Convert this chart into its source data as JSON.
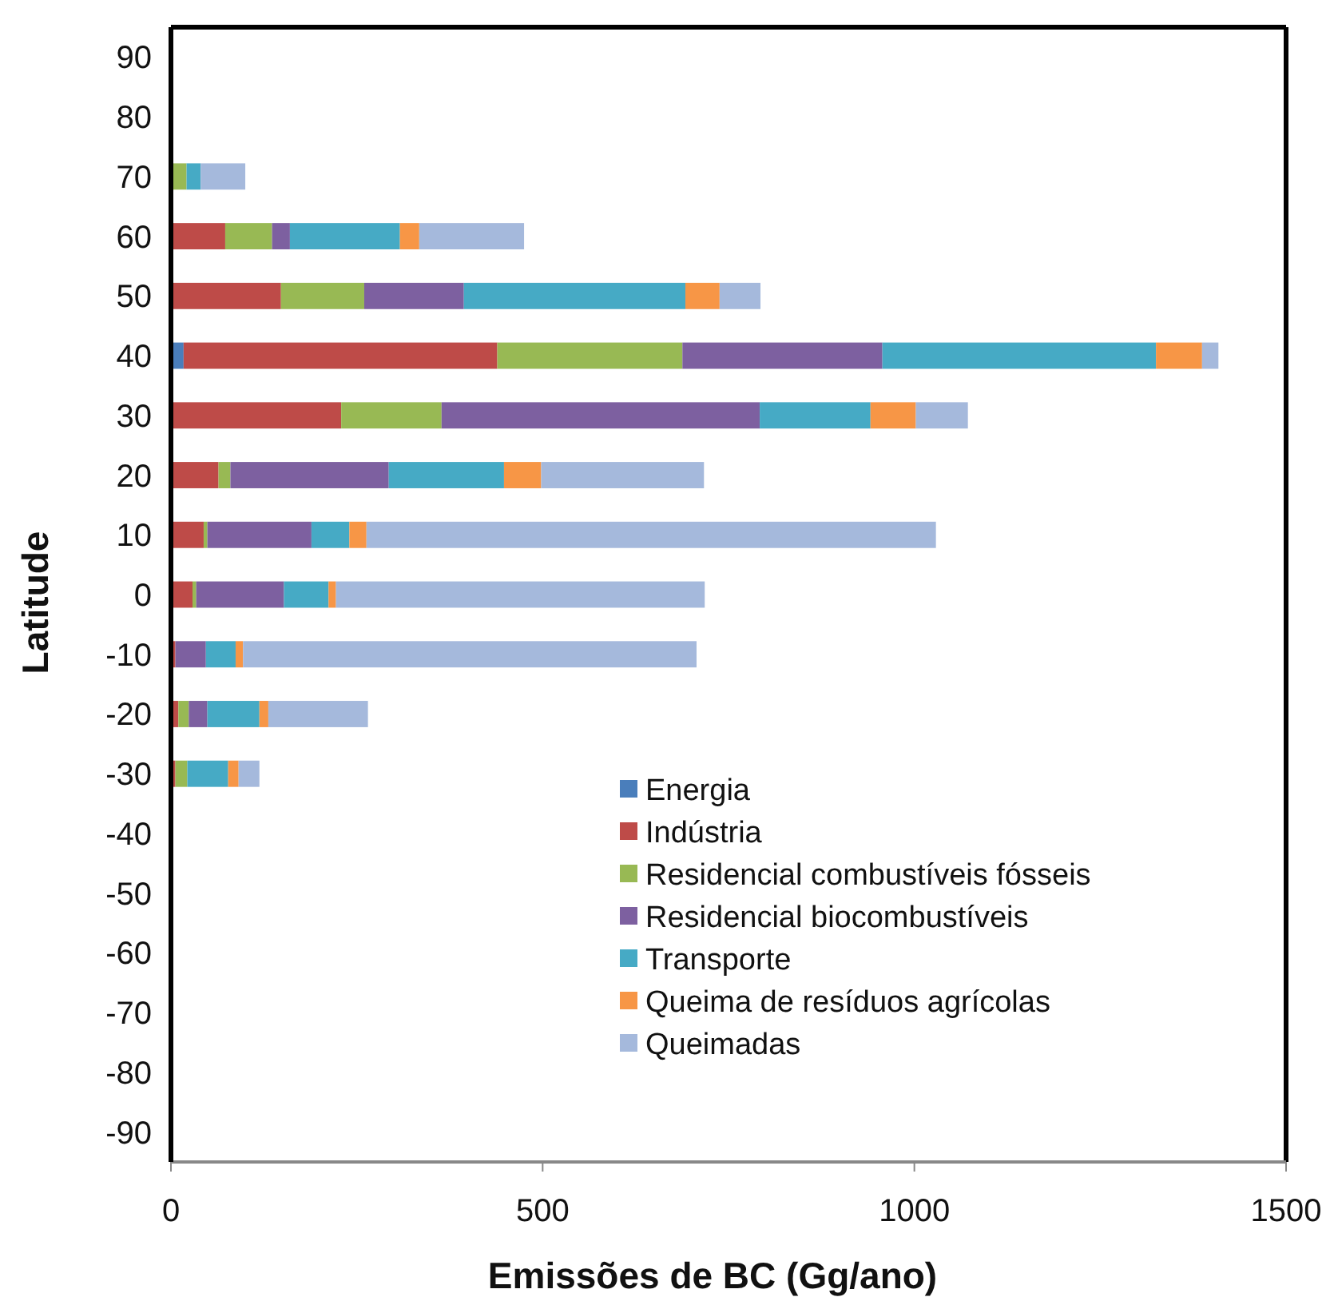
{
  "chart_data": {
    "type": "bar",
    "orientation": "horizontal",
    "stacked": true,
    "xlabel": "Emissões de BC (Gg/ano)",
    "ylabel": "Latitude",
    "categories": [
      "90",
      "80",
      "70",
      "60",
      "50",
      "40",
      "30",
      "20",
      "10",
      "0",
      "-10",
      "-20",
      "-30",
      "-40",
      "-50",
      "-60",
      "-70",
      "-80",
      "-90"
    ],
    "xlim": [
      0,
      1500
    ],
    "xticks": [
      0,
      500,
      1000,
      1500
    ],
    "legend": "bottom right",
    "grid": false,
    "series": [
      {
        "name": "Energia",
        "color": "#4a7ebb",
        "values": [
          null,
          null,
          0,
          0,
          null,
          17,
          null,
          0,
          0,
          0,
          0,
          0,
          0,
          null,
          null,
          null,
          null,
          null,
          null
        ]
      },
      {
        "name": "Indústria",
        "color": "#be4b48",
        "values": [
          null,
          null,
          0,
          73,
          148,
          422,
          229,
          64,
          44,
          29,
          6,
          10,
          6,
          null,
          null,
          null,
          null,
          null,
          null
        ]
      },
      {
        "name": "Residencial combustíveis fósseis",
        "color": "#98b954",
        "values": [
          null,
          null,
          21,
          63,
          112,
          249,
          135,
          16,
          5,
          5,
          0,
          14,
          16,
          null,
          null,
          null,
          null,
          null,
          null
        ]
      },
      {
        "name": "Residencial biocombustíveis",
        "color": "#7d60a0",
        "values": [
          null,
          null,
          0,
          24,
          134,
          269,
          428,
          213,
          140,
          118,
          41,
          25,
          0,
          null,
          null,
          null,
          null,
          null,
          null
        ]
      },
      {
        "name": "Transporte",
        "color": "#46aac5",
        "values": [
          null,
          null,
          19,
          148,
          298,
          368,
          149,
          155,
          51,
          60,
          40,
          70,
          55,
          null,
          null,
          null,
          null,
          null,
          null
        ]
      },
      {
        "name": "Queima de resíduos agrícolas",
        "color": "#f79646",
        "values": [
          null,
          null,
          0,
          26,
          46,
          62,
          61,
          50,
          23,
          10,
          10,
          12,
          14,
          null,
          null,
          null,
          null,
          null,
          null
        ]
      },
      {
        "name": "Queimadas",
        "color": "#a5b9dc",
        "values": [
          null,
          null,
          60,
          141,
          55,
          22,
          70,
          219,
          766,
          496,
          610,
          134,
          28,
          null,
          null,
          null,
          null,
          null,
          null
        ]
      }
    ]
  }
}
